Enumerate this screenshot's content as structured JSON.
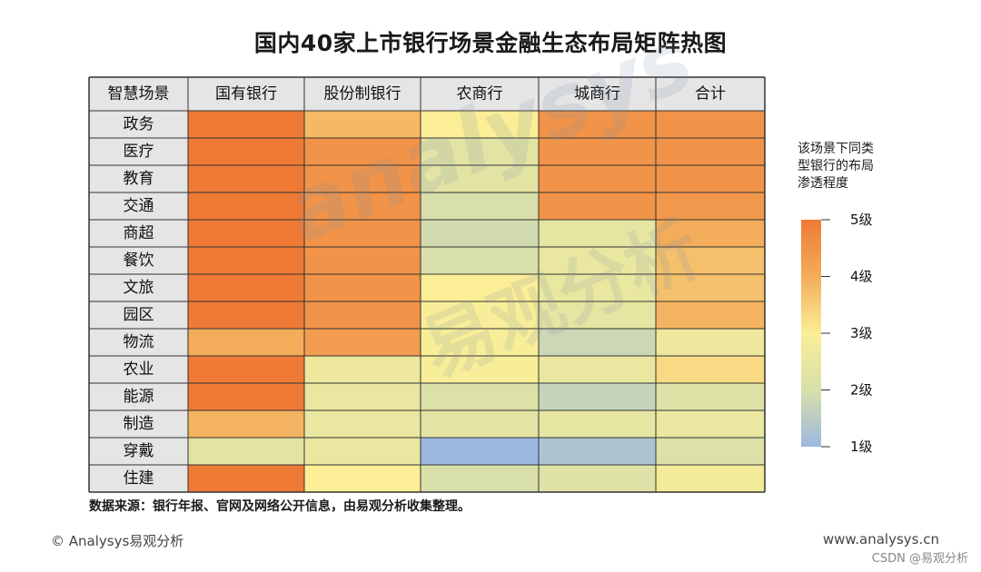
{
  "chart_data": {
    "type": "heatmap",
    "title": "国内40家上市银行场景金融生态布局矩阵热图",
    "corner_label": "智慧场景",
    "columns": [
      "国有银行",
      "股份制银行",
      "农商行",
      "城商行",
      "合计"
    ],
    "rows": [
      "政务",
      "医疗",
      "教育",
      "交通",
      "商超",
      "餐饮",
      "文旅",
      "园区",
      "物流",
      "农业",
      "能源",
      "制造",
      "穿戴",
      "住建"
    ],
    "values": [
      [
        5.0,
        3.8,
        3.0,
        4.5,
        4.5
      ],
      [
        5.0,
        4.5,
        2.3,
        4.5,
        4.5
      ],
      [
        5.0,
        4.5,
        2.3,
        4.5,
        4.5
      ],
      [
        5.0,
        4.5,
        2.0,
        4.5,
        4.4
      ],
      [
        5.0,
        4.5,
        1.9,
        2.4,
        4.0
      ],
      [
        5.0,
        4.5,
        2.0,
        2.5,
        3.7
      ],
      [
        5.0,
        4.5,
        3.0,
        2.5,
        3.7
      ],
      [
        5.0,
        4.5,
        2.9,
        2.4,
        3.9
      ],
      [
        4.0,
        4.3,
        2.9,
        1.8,
        2.6
      ],
      [
        5.0,
        2.6,
        2.9,
        2.5,
        3.3
      ],
      [
        5.0,
        2.5,
        2.1,
        1.7,
        2.2
      ],
      [
        3.9,
        2.5,
        2.3,
        2.4,
        2.5
      ],
      [
        2.3,
        2.5,
        1.0,
        1.3,
        2.1
      ],
      [
        5.0,
        3.0,
        2.0,
        2.2,
        2.8
      ]
    ],
    "scale": {
      "min": 1,
      "max": 5,
      "ticks": [
        "1级",
        "2级",
        "3级",
        "4级",
        "5级"
      ]
    },
    "colors": [
      "#9bb9e0",
      "#d8dfaa",
      "#fbee96",
      "#f3ac5a",
      "#ee7a36"
    ],
    "legend_title": "该场景下同类\n型银行的布局\n渗透程度",
    "legend_position": "right"
  },
  "footer": {
    "source_note": "数据来源：银行年报、官网及网络公开信息，由易观分析收集整理。",
    "copyright": "© Analysys易观分析",
    "website": "www.analysys.cn",
    "csdn": "CSDN @易观分析"
  },
  "watermark": {
    "latin": "analysys",
    "cn": "易观分析"
  }
}
